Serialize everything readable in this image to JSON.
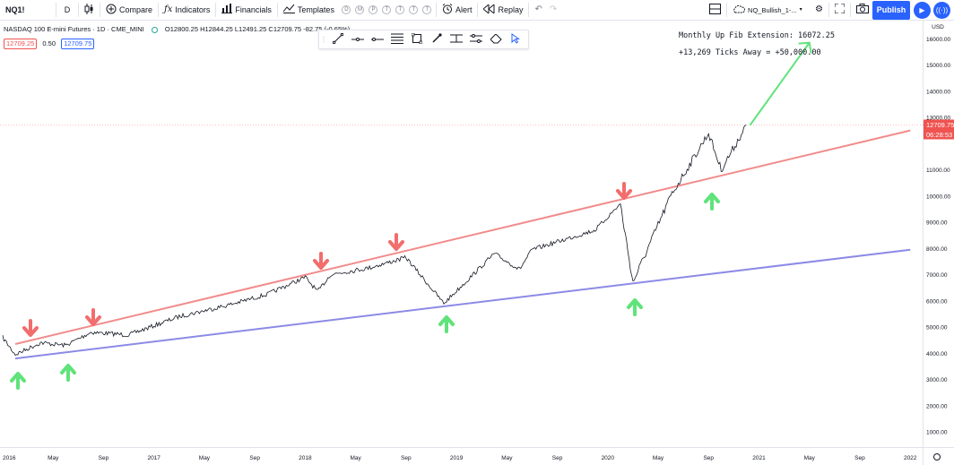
{
  "toolbar": {
    "symbol": "NQ1!",
    "interval": "D",
    "compare_label": "Compare",
    "indicators_label": "Indicators",
    "financials_label": "Financials",
    "templates_label": "Templates",
    "template_chips": [
      "D",
      "M",
      "P",
      "T",
      "T",
      "T",
      "T"
    ],
    "alert_label": "Alert",
    "replay_label": "Replay",
    "layout_name": "NQ_Bullish_1-...",
    "publish_label": "Publish"
  },
  "legend": {
    "title": "NASDAQ 100 E-mini Futures · 1D · CME_MINI",
    "ohlc": "O12800.25  H12844.25  L12491.25  C12709.75  -82.75 (-0.65%)",
    "bid": "12709.25",
    "spread": "0.50",
    "ask": "12709.75"
  },
  "annotations": {
    "line1": "Monthly Up Fib Extension: 16072.25",
    "line2": "+13,269 Ticks Away = +50,000.00"
  },
  "price_axis": {
    "currency": "USD",
    "ticks": [
      "16000.00",
      "15000.00",
      "14000.00",
      "13000.00",
      "11000.00",
      "10000.00",
      "9000.00",
      "8000.00",
      "7000.00",
      "6000.00",
      "5000.00",
      "4000.00",
      "3000.00",
      "2000.00",
      "1000.00"
    ],
    "last_price": "12709.75",
    "countdown": "06:28:53"
  },
  "time_axis": {
    "ticks": [
      "2016",
      "May",
      "Sep",
      "2017",
      "May",
      "Sep",
      "2018",
      "May",
      "Sep",
      "2019",
      "May",
      "Sep",
      "2020",
      "May",
      "Sep",
      "2021",
      "May",
      "Sep",
      "2022"
    ]
  },
  "colors": {
    "resistance": "#f28b8b",
    "support": "#8c8ae6",
    "down_arrow": "#f26d6d",
    "up_arrow": "#5fe37a",
    "projection": "#5fe37a",
    "price_label": "#ef5350",
    "accent": "#2962ff"
  },
  "chart_data": {
    "type": "line",
    "symbol": "NQ1!",
    "price_series_approx": [
      [
        "2016-01",
        4600
      ],
      [
        "2016-02",
        3950
      ],
      [
        "2016-04",
        4400
      ],
      [
        "2016-06",
        4300
      ],
      [
        "2016-08",
        4800
      ],
      [
        "2016-11",
        4700
      ],
      [
        "2017-03",
        5400
      ],
      [
        "2017-07",
        5850
      ],
      [
        "2017-10",
        6250
      ],
      [
        "2018-01",
        6900
      ],
      [
        "2018-02",
        6350
      ],
      [
        "2018-03",
        7000
      ],
      [
        "2018-06",
        7250
      ],
      [
        "2018-09",
        7650
      ],
      [
        "2018-12",
        5900
      ],
      [
        "2019-04",
        7800
      ],
      [
        "2019-06",
        7200
      ],
      [
        "2019-07",
        7950
      ],
      [
        "2019-12",
        8700
      ],
      [
        "2020-02",
        9700
      ],
      [
        "2020-03",
        6700
      ],
      [
        "2020-06",
        10000
      ],
      [
        "2020-09",
        12400
      ],
      [
        "2020-10",
        11000
      ],
      [
        "2020-12",
        12700
      ]
    ],
    "resistance_line": [
      [
        "2016-01",
        4350
      ],
      [
        "2022-01",
        12500
      ]
    ],
    "support_line": [
      [
        "2016-01",
        3800
      ],
      [
        "2022-01",
        7950
      ]
    ],
    "projection": [
      [
        "2020-12",
        12700
      ],
      [
        "2021-05",
        15850
      ]
    ],
    "ylim": [
      1000,
      16500
    ],
    "grid": false
  }
}
